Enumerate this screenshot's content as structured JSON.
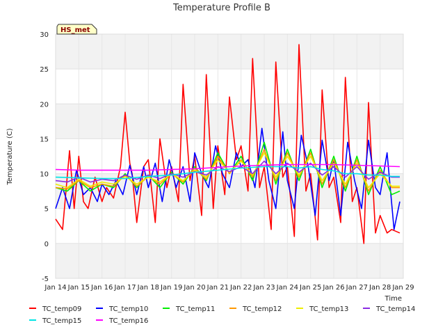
{
  "chart_data": {
    "type": "line",
    "title": "Temperature Profile B",
    "xlabel": "Time",
    "ylabel": "Temperature (C)",
    "ylim": [
      -5,
      30
    ],
    "xlim": [
      0,
      15
    ],
    "yticks": [
      -5,
      0,
      5,
      10,
      15,
      20,
      25,
      30
    ],
    "xticks": [
      {
        "v": 0,
        "label": "Jan 14"
      },
      {
        "v": 1,
        "label": "Jan 15"
      },
      {
        "v": 2,
        "label": "Jan 16"
      },
      {
        "v": 3,
        "label": "Jan 17"
      },
      {
        "v": 4,
        "label": "Jan 18"
      },
      {
        "v": 5,
        "label": "Jan 19"
      },
      {
        "v": 6,
        "label": "Jan 20"
      },
      {
        "v": 7,
        "label": "Jan 21"
      },
      {
        "v": 8,
        "label": "Jan 22"
      },
      {
        "v": 9,
        "label": "Jan 23"
      },
      {
        "v": 10,
        "label": "Jan 24"
      },
      {
        "v": 11,
        "label": "Jan 25"
      },
      {
        "v": 12,
        "label": "Jan 26"
      },
      {
        "v": 13,
        "label": "Jan 27"
      },
      {
        "v": 14,
        "label": "Jan 28"
      },
      {
        "v": 15,
        "label": "Jan 29"
      }
    ],
    "badge": "HS_met",
    "grid": true,
    "legend_position": "bottom",
    "series": [
      {
        "name": "TC_temp09",
        "color": "#ff0000",
        "x": [
          0,
          0.3,
          0.6,
          0.8,
          1.0,
          1.2,
          1.4,
          1.7,
          2.0,
          2.2,
          2.5,
          2.8,
          3.0,
          3.2,
          3.3,
          3.5,
          3.8,
          4.0,
          4.3,
          4.5,
          4.8,
          5.0,
          5.3,
          5.5,
          5.8,
          6.0,
          6.3,
          6.5,
          6.8,
          7.0,
          7.3,
          7.5,
          7.8,
          8.0,
          8.3,
          8.5,
          8.8,
          9.0,
          9.3,
          9.5,
          9.8,
          10.0,
          10.3,
          10.5,
          10.8,
          11.0,
          11.3,
          11.5,
          11.8,
          12.0,
          12.3,
          12.5,
          12.8,
          13.0,
          13.3,
          13.5,
          13.8,
          14.0,
          14.3,
          14.5,
          14.85
        ],
        "y": [
          3.5,
          2,
          13.3,
          5,
          12.5,
          6,
          5,
          9.5,
          6,
          8,
          6.5,
          11,
          18.8,
          11.5,
          10,
          3,
          11,
          12,
          3,
          15,
          8,
          11,
          6,
          22.8,
          9,
          12.5,
          4,
          24.2,
          5,
          14,
          7,
          21,
          12,
          14,
          7.5,
          26.5,
          8,
          11,
          2,
          26,
          9.5,
          11,
          1,
          28.5,
          7.5,
          10,
          0.5,
          22,
          8,
          9.5,
          3,
          23.8,
          6,
          8,
          0,
          20.2,
          1.5,
          4,
          1.5,
          2,
          1.5
        ]
      },
      {
        "name": "TC_temp10",
        "color": "#0000ff",
        "x": [
          0,
          0.3,
          0.6,
          0.9,
          1.2,
          1.5,
          1.8,
          2.0,
          2.3,
          2.6,
          2.9,
          3.2,
          3.5,
          3.8,
          4.0,
          4.3,
          4.6,
          4.9,
          5.2,
          5.5,
          5.8,
          6.0,
          6.3,
          6.6,
          6.9,
          7.2,
          7.5,
          7.8,
          8.0,
          8.3,
          8.6,
          8.9,
          9.2,
          9.5,
          9.8,
          10.0,
          10.3,
          10.6,
          10.9,
          11.2,
          11.5,
          11.8,
          12.0,
          12.3,
          12.6,
          12.9,
          13.2,
          13.5,
          13.8,
          14.0,
          14.3,
          14.6,
          14.85
        ],
        "y": [
          5,
          8,
          5,
          10.5,
          7,
          8,
          6,
          8.5,
          7,
          9,
          7,
          11.2,
          7,
          11,
          8,
          11.5,
          6,
          12,
          8,
          11,
          6,
          13,
          10,
          8,
          14,
          10,
          8,
          13,
          11,
          12,
          8,
          16.5,
          9,
          5,
          16,
          9,
          5,
          15.5,
          11,
          4,
          14.8,
          9,
          12,
          4,
          14.5,
          9,
          5,
          14.8,
          8,
          7,
          13,
          2,
          6
        ]
      },
      {
        "name": "TC_temp11",
        "color": "#00ee00",
        "x": [
          0,
          0.5,
          1.0,
          1.5,
          2.0,
          2.5,
          3.0,
          3.5,
          4.0,
          4.5,
          5.0,
          5.5,
          6.0,
          6.5,
          7.0,
          7.5,
          8.0,
          8.5,
          9.0,
          9.5,
          10.0,
          10.5,
          11.0,
          11.5,
          12.0,
          12.5,
          13.0,
          13.5,
          14.0,
          14.5,
          14.85
        ],
        "y": [
          8,
          7.5,
          9,
          7.5,
          8.5,
          8,
          10,
          8,
          9.8,
          8,
          10.2,
          8.5,
          11,
          9,
          13,
          10,
          12.5,
          9,
          14.5,
          8.5,
          13.5,
          9,
          13.5,
          8,
          12.5,
          7.5,
          12.5,
          7,
          11,
          7,
          7.5
        ]
      },
      {
        "name": "TC_temp12",
        "color": "#ff9900",
        "x": [
          0,
          0.5,
          1.0,
          1.5,
          2.0,
          2.5,
          3.0,
          3.5,
          4.0,
          4.5,
          5.0,
          5.5,
          6.0,
          6.5,
          7.0,
          7.5,
          8.0,
          8.5,
          9.0,
          9.5,
          10.0,
          10.5,
          11.0,
          11.5,
          12.0,
          12.5,
          13.0,
          13.5,
          14.0,
          14.5,
          14.85
        ],
        "y": [
          8,
          7.8,
          9,
          8,
          8.5,
          8.2,
          9.8,
          8.2,
          9.6,
          8.5,
          10,
          8.8,
          10.8,
          9.2,
          12.5,
          10,
          12,
          9.5,
          13.5,
          9,
          13,
          9.5,
          13,
          8.5,
          12,
          8,
          12,
          7.5,
          10.5,
          8,
          8
        ]
      },
      {
        "name": "TC_temp13",
        "color": "#eeee00",
        "x": [
          0,
          0.5,
          1.0,
          1.5,
          2.0,
          2.5,
          3.0,
          3.5,
          4.0,
          4.5,
          5.0,
          5.5,
          6.0,
          6.5,
          7.0,
          7.5,
          8.0,
          8.5,
          9.0,
          9.5,
          10.0,
          10.5,
          11.0,
          11.5,
          12.0,
          12.5,
          13.0,
          13.5,
          14.0,
          14.5,
          14.85
        ],
        "y": [
          8.5,
          8,
          9.2,
          8.2,
          8.8,
          8.5,
          9.6,
          8.5,
          9.5,
          8.8,
          10,
          9,
          10.5,
          9.5,
          12,
          10.2,
          11.8,
          9.8,
          13,
          9.5,
          12.5,
          9.8,
          12.5,
          9,
          11.5,
          8.5,
          11.5,
          8,
          10,
          8.2,
          8.2
        ]
      },
      {
        "name": "TC_temp14",
        "color": "#8a2be2",
        "x": [
          0,
          0.5,
          1.0,
          1.5,
          2.0,
          2.5,
          3.0,
          3.5,
          4.0,
          4.5,
          5.0,
          5.5,
          6.0,
          6.5,
          7.0,
          7.5,
          8.0,
          8.5,
          9.0,
          9.5,
          10.0,
          10.5,
          11.0,
          11.5,
          12.0,
          12.5,
          13.0,
          13.5,
          14.0,
          14.5,
          14.85
        ],
        "y": [
          9,
          8.8,
          9.5,
          8.8,
          9.2,
          9,
          9.8,
          9.2,
          9.8,
          9.3,
          10,
          9.5,
          10.3,
          9.8,
          11,
          10.3,
          11,
          10,
          11.8,
          10,
          11.5,
          10.2,
          11.5,
          9.8,
          11,
          9.5,
          11,
          9.2,
          10.2,
          9.5,
          9.5
        ]
      },
      {
        "name": "TC_temp15",
        "color": "#00e5e5",
        "x": [
          0,
          1,
          2,
          3,
          4,
          5,
          6,
          7,
          8,
          9,
          10,
          10.5,
          11,
          11.5,
          12,
          12.5,
          13,
          13.5,
          14,
          14.5,
          14.85
        ],
        "y": [
          9.5,
          9.4,
          9.3,
          9.3,
          9.6,
          9.8,
          10.2,
          10.5,
          10.8,
          11,
          11,
          10.8,
          11,
          10.6,
          10.4,
          10,
          10,
          9.8,
          9.8,
          9.6,
          9.6
        ]
      },
      {
        "name": "TC_temp16",
        "color": "#ff00ff",
        "x": [
          0,
          1,
          2,
          3,
          4,
          5,
          6,
          7,
          8,
          9,
          10,
          11,
          12,
          13,
          14,
          14.85
        ],
        "y": [
          10.6,
          10.5,
          10.5,
          10.5,
          10.5,
          10.6,
          10.7,
          10.9,
          11.1,
          11.2,
          11.3,
          11.3,
          11.3,
          11.2,
          11.1,
          11.0
        ]
      }
    ]
  }
}
